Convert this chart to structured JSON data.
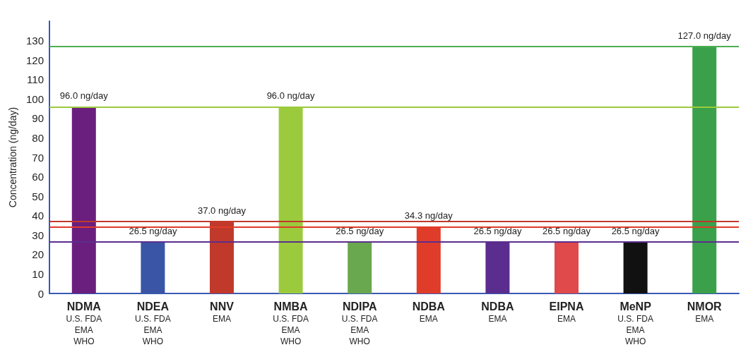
{
  "chart_data": {
    "type": "bar",
    "ylabel": "Concentration (ng/day)",
    "categories": [
      "NDMA\nU.S. FDA\nEMA\nWHO",
      "NDEA\nU.S. FDA\nEMA\nWHO",
      "NNV\nEMA",
      "NMBA\nU.S. FDA\nEMA\nWHO",
      "NDIPA\nU.S. FDA\nEMA\nWHO",
      "NDBA\nEMA",
      "NDBA\nEMA",
      "EIPNA\nEMA",
      "MeNP\nU.S. FDA\nEMA\nWHO",
      "NMOR\nEMA"
    ],
    "values": [
      96.0,
      26.5,
      37.0,
      96.0,
      26.5,
      34.3,
      26.5,
      26.5,
      26.5,
      127.0
    ],
    "colors": [
      "#6a1f7f",
      "#3a55a5",
      "#c0392b",
      "#9bcb3c",
      "#6aa84f",
      "#e03c2a",
      "#5b2d8e",
      "#e04a4a",
      "#111111",
      "#3aa14a"
    ],
    "value_labels": [
      "96.0 ng/day",
      "26.5 ng/day",
      "37.0 ng/day",
      "96.0 ng/day",
      "26.5 ng/day",
      "34.3 ng/day",
      "26.5 ng/day",
      "26.5 ng/day",
      "26.5 ng/day",
      "127.0 ng/day"
    ],
    "ylim": [
      0,
      140
    ],
    "yticks": [
      0,
      10,
      20,
      30,
      40,
      50,
      60,
      70,
      80,
      90,
      100,
      110,
      120,
      130
    ],
    "ref_lines": [
      {
        "axis": "y",
        "value": 127.0,
        "color": "#4caf50"
      },
      {
        "axis": "y",
        "value": 96.0,
        "color": "#9bcb3c"
      },
      {
        "axis": "y",
        "value": 37.0,
        "color": "#c0392b"
      },
      {
        "axis": "y",
        "value": 34.3,
        "color": "#e03c2a"
      },
      {
        "axis": "y",
        "value": 26.5,
        "color": "#5b2d8e"
      }
    ],
    "grid": false
  }
}
